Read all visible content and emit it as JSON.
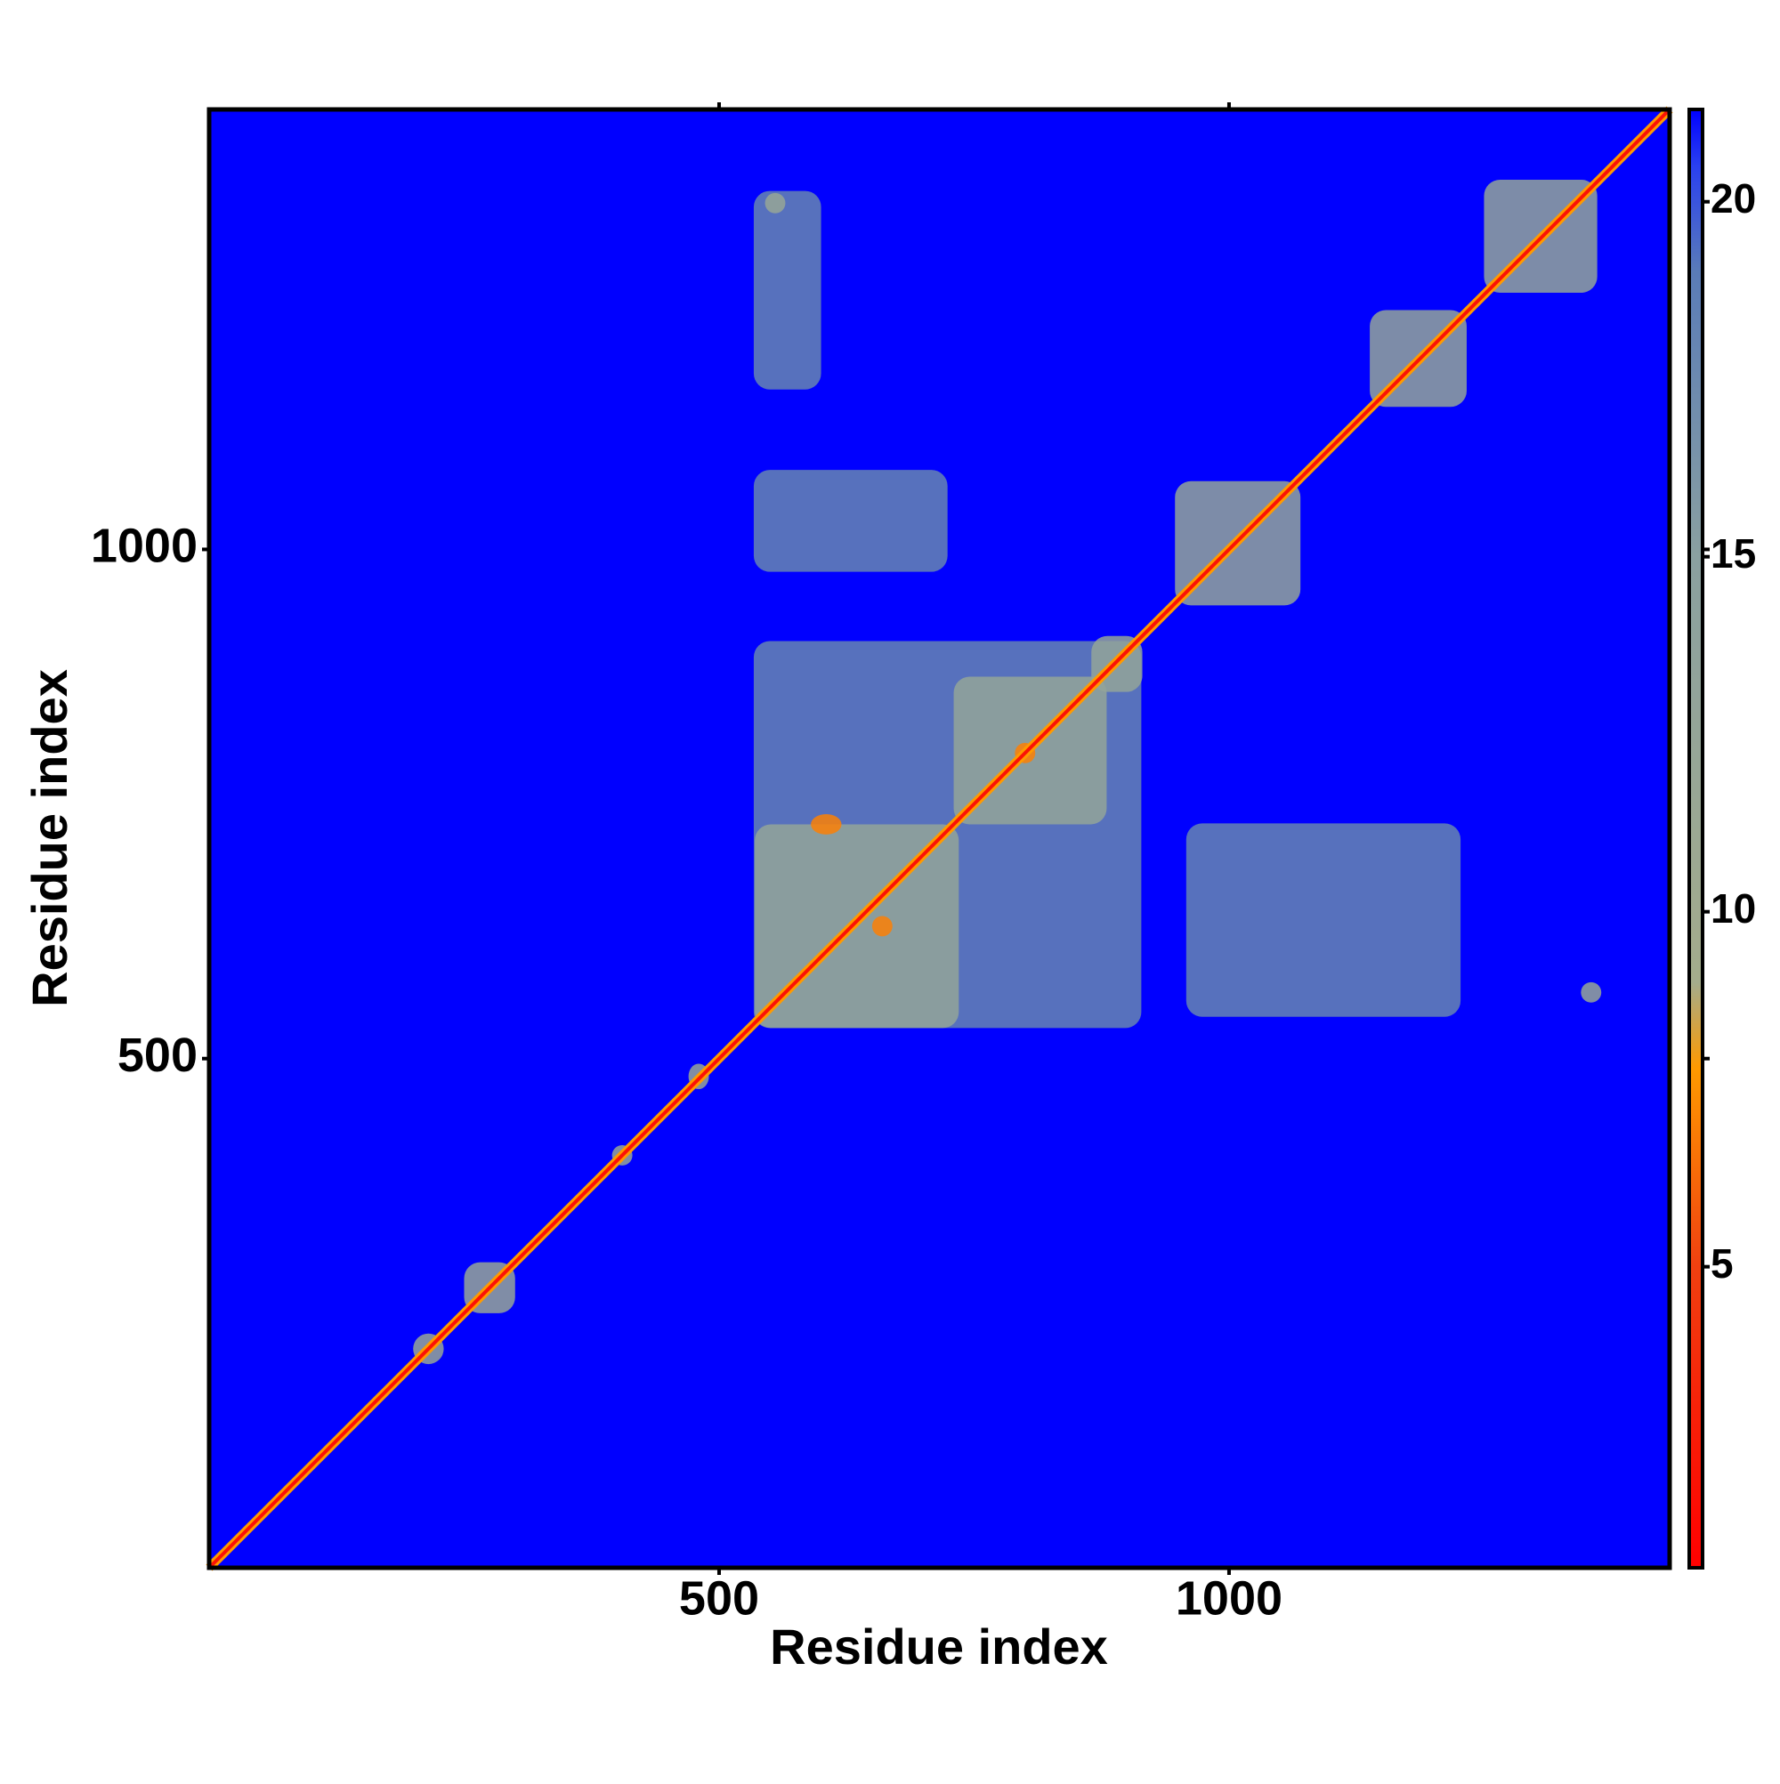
{
  "chart_data": {
    "type": "heatmap",
    "xlabel": "Residue index",
    "ylabel": "Residue index",
    "xlim": [
      0,
      1432
    ],
    "ylim": [
      0,
      1432
    ],
    "xticks": [
      500,
      1000
    ],
    "yticks": [
      500,
      1000
    ],
    "zlim": [
      0.76,
      21.3
    ],
    "zticks": [
      5,
      10,
      15,
      20
    ],
    "colorscale": [
      {
        "value": 0.76,
        "color": "#ff0000"
      },
      {
        "value": 5,
        "color": "#f04010"
      },
      {
        "value": 7.8,
        "color": "#ff9a00"
      },
      {
        "value": 9,
        "color": "#a4ac8c"
      },
      {
        "value": 15,
        "color": "#8aa0a0"
      },
      {
        "value": 19,
        "color": "#5a7cb8"
      },
      {
        "value": 20.5,
        "color": "#2a40f0"
      },
      {
        "value": 21.3,
        "color": "#0000ff"
      }
    ],
    "blocks": [
      {
        "x": [
          534,
          914
        ],
        "y": [
          530,
          910
        ],
        "value": 18
      },
      {
        "x": [
          534,
          724
        ],
        "y": [
          978,
          1078
        ],
        "value": 18
      },
      {
        "x": [
          534,
          600
        ],
        "y": [
          1157,
          1352
        ],
        "value": 18
      },
      {
        "x": [
          958,
          1227
        ],
        "y": [
          541,
          731
        ],
        "value": 18
      },
      {
        "x": [
          535,
          735
        ],
        "y": [
          530,
          730
        ],
        "value": 13
      },
      {
        "x": [
          730,
          880
        ],
        "y": [
          730,
          875
        ],
        "value": 13
      },
      {
        "x": [
          865,
          915
        ],
        "y": [
          860,
          915
        ],
        "value": 13
      },
      {
        "x": [
          947,
          1070
        ],
        "y": [
          945,
          1067
        ],
        "value": 13
      },
      {
        "x": [
          1138,
          1233
        ],
        "y": [
          1140,
          1235
        ],
        "value": 13
      },
      {
        "x": [
          1250,
          1361
        ],
        "y": [
          1252,
          1363
        ],
        "value": 13
      },
      {
        "x": [
          545,
          565
        ],
        "y": [
          1330,
          1350
        ],
        "value": 12
      },
      {
        "x": [
          1345,
          1365
        ],
        "y": [
          555,
          575
        ],
        "value": 12
      },
      {
        "x": [
          250,
          300
        ],
        "y": [
          250,
          300
        ],
        "value": 12
      },
      {
        "x": [
          200,
          230
        ],
        "y": [
          200,
          230
        ],
        "value": 12
      },
      {
        "x": [
          470,
          490
        ],
        "y": [
          470,
          495
        ],
        "value": 12
      },
      {
        "x": [
          395,
          415
        ],
        "y": [
          395,
          415
        ],
        "value": 12
      },
      {
        "x": [
          590,
          620
        ],
        "y": [
          720,
          740
        ],
        "value": 7
      },
      {
        "x": [
          650,
          670
        ],
        "y": [
          620,
          640
        ],
        "value": 7
      },
      {
        "x": [
          790,
          810
        ],
        "y": [
          790,
          810
        ],
        "value": 7
      }
    ],
    "diagonal": {
      "x": [
        0,
        1432
      ],
      "y": [
        0,
        1432
      ],
      "value": 2
    }
  }
}
